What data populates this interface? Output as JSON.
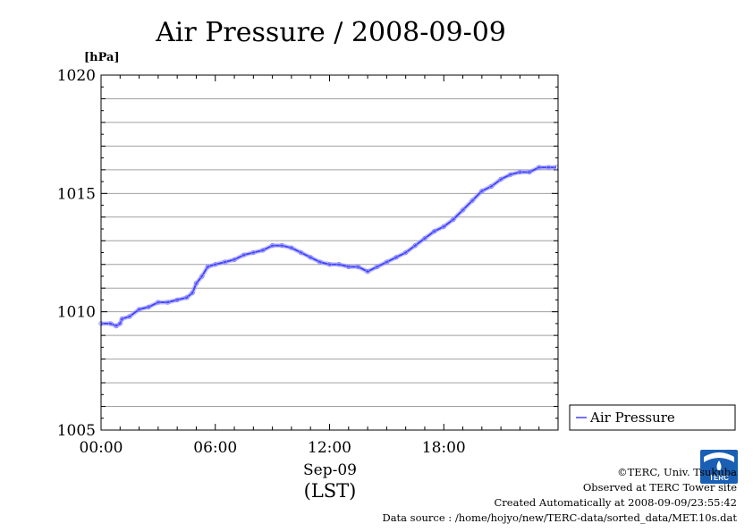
{
  "chart_data": {
    "type": "line",
    "title": "Air Pressure / 2008-09-09",
    "ylabel": "[hPa]",
    "xlabel": "Sep-09",
    "xlabel2": "(LST)",
    "ylim": [
      1005,
      1020
    ],
    "xlim": [
      0,
      24
    ],
    "yticks": [
      1005,
      1010,
      1015,
      1020
    ],
    "xticks": [
      {
        "value": 0,
        "label": "00:00"
      },
      {
        "value": 6,
        "label": "06:00"
      },
      {
        "value": 12,
        "label": "12:00"
      },
      {
        "value": 18,
        "label": "18:00"
      }
    ],
    "grid": true,
    "legend_position": "right",
    "series": [
      {
        "name": "Air Pressure",
        "color": "#4444ff",
        "x": [
          0.0,
          0.5,
          0.8,
          1.0,
          1.1,
          1.5,
          2.0,
          2.5,
          3.0,
          3.5,
          4.0,
          4.5,
          4.8,
          5.0,
          5.3,
          5.6,
          6.0,
          6.5,
          7.0,
          7.5,
          8.0,
          8.5,
          9.0,
          9.5,
          10.0,
          10.5,
          11.0,
          11.5,
          12.0,
          12.5,
          13.0,
          13.5,
          14.0,
          14.5,
          15.0,
          15.5,
          16.0,
          16.5,
          17.0,
          17.5,
          18.0,
          18.5,
          19.0,
          19.5,
          20.0,
          20.5,
          21.0,
          21.5,
          22.0,
          22.5,
          23.0,
          23.5,
          23.9
        ],
        "y": [
          1009.5,
          1009.5,
          1009.4,
          1009.5,
          1009.7,
          1009.8,
          1010.1,
          1010.2,
          1010.4,
          1010.4,
          1010.5,
          1010.6,
          1010.8,
          1011.2,
          1011.5,
          1011.9,
          1012.0,
          1012.1,
          1012.2,
          1012.4,
          1012.5,
          1012.6,
          1012.8,
          1012.8,
          1012.7,
          1012.5,
          1012.3,
          1012.1,
          1012.0,
          1012.0,
          1011.9,
          1011.9,
          1011.7,
          1011.9,
          1012.1,
          1012.3,
          1012.5,
          1012.8,
          1013.1,
          1013.4,
          1013.6,
          1013.9,
          1014.3,
          1014.7,
          1015.1,
          1015.3,
          1015.6,
          1015.8,
          1015.9,
          1015.9,
          1016.1,
          1016.1,
          1016.1
        ]
      }
    ]
  },
  "credits": {
    "copyright": "©TERC, Univ. Tsukuba",
    "observed": "Observed at TERC Tower site",
    "created": "Created Automatically at 2008-09-09/23:55:42",
    "source": "Data source : /home/hojyo/new/TERC-data/sorted_data/MET.10s.dat"
  },
  "logo": {
    "text": "TERC",
    "icon": "terc-logo-icon"
  }
}
